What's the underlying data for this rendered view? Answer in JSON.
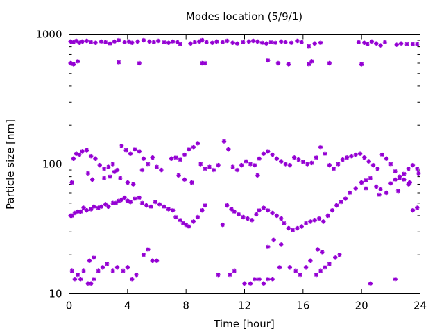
{
  "chart_data": {
    "type": "scatter",
    "title": "Modes location (5/9/1)",
    "xlabel": "Time [hour]",
    "ylabel": "Particle size [nm]",
    "xlim": [
      0,
      24
    ],
    "ylim": [
      10,
      1000
    ],
    "yscale": "log",
    "grid": false,
    "x_ticks": [
      0,
      4,
      8,
      12,
      16,
      20,
      24
    ],
    "x_tick_labels": [
      "0",
      "4",
      "8",
      "12",
      "16",
      "20",
      "24"
    ],
    "y_ticks": [
      10,
      100,
      1000
    ],
    "y_tick_labels": [
      "10",
      "100",
      "1000"
    ],
    "marker_color": "#9400d3",
    "series": [
      {
        "points": [
          [
            0.1,
            880
          ],
          [
            0.3,
            870
          ],
          [
            0.5,
            890
          ],
          [
            0.7,
            860
          ],
          [
            0.9,
            880
          ],
          [
            1.2,
            890
          ],
          [
            1.5,
            870
          ],
          [
            1.8,
            860
          ],
          [
            2.2,
            880
          ],
          [
            2.5,
            870
          ],
          [
            2.8,
            850
          ],
          [
            3.1,
            880
          ],
          [
            3.4,
            900
          ],
          [
            3.8,
            870
          ],
          [
            4.1,
            880
          ],
          [
            4.3,
            860
          ],
          [
            4.7,
            880
          ],
          [
            5.1,
            900
          ],
          [
            5.5,
            880
          ],
          [
            5.8,
            870
          ],
          [
            6.1,
            890
          ],
          [
            6.5,
            870
          ],
          [
            6.8,
            860
          ],
          [
            7.1,
            880
          ],
          [
            7.4,
            870
          ],
          [
            7.6,
            840
          ],
          [
            8.3,
            850
          ],
          [
            8.6,
            870
          ],
          [
            8.9,
            880
          ],
          [
            9.1,
            900
          ],
          [
            9.4,
            870
          ],
          [
            9.8,
            860
          ],
          [
            10.1,
            880
          ],
          [
            10.5,
            870
          ],
          [
            10.8,
            890
          ],
          [
            11.2,
            860
          ],
          [
            11.5,
            850
          ],
          [
            11.9,
            870
          ],
          [
            12.3,
            880
          ],
          [
            12.6,
            890
          ],
          [
            12.9,
            880
          ],
          [
            13.2,
            860
          ],
          [
            13.5,
            850
          ],
          [
            13.8,
            870
          ],
          [
            14.1,
            860
          ],
          [
            14.5,
            880
          ],
          [
            14.8,
            870
          ],
          [
            15.2,
            860
          ],
          [
            15.6,
            890
          ],
          [
            15.9,
            870
          ],
          [
            16.4,
            810
          ],
          [
            16.8,
            850
          ],
          [
            17.2,
            860
          ],
          [
            19.8,
            870
          ],
          [
            20.2,
            860
          ],
          [
            20.4,
            840
          ],
          [
            20.7,
            880
          ],
          [
            21.0,
            850
          ],
          [
            21.3,
            820
          ],
          [
            21.6,
            870
          ],
          [
            22.4,
            830
          ],
          [
            22.7,
            850
          ],
          [
            23.1,
            840
          ],
          [
            23.5,
            840
          ],
          [
            23.8,
            840
          ],
          [
            0.1,
            600
          ],
          [
            0.3,
            590
          ],
          [
            0.6,
            620
          ],
          [
            3.4,
            610
          ],
          [
            4.8,
            600
          ],
          [
            9.1,
            600
          ],
          [
            9.3,
            600
          ],
          [
            13.6,
            630
          ],
          [
            14.3,
            600
          ],
          [
            15.0,
            590
          ],
          [
            16.4,
            590
          ],
          [
            16.6,
            620
          ],
          [
            17.8,
            600
          ],
          [
            20.0,
            590
          ],
          [
            0.1,
            40
          ],
          [
            0.2,
            40
          ],
          [
            0.4,
            42
          ],
          [
            0.6,
            43
          ],
          [
            0.8,
            43
          ],
          [
            1.0,
            46
          ],
          [
            1.2,
            44
          ],
          [
            1.5,
            45
          ],
          [
            1.7,
            47
          ],
          [
            2.0,
            46
          ],
          [
            2.2,
            47
          ],
          [
            2.5,
            49
          ],
          [
            2.7,
            47
          ],
          [
            3.0,
            50
          ],
          [
            3.2,
            50
          ],
          [
            3.4,
            52
          ],
          [
            3.6,
            53
          ],
          [
            3.8,
            55
          ],
          [
            4.0,
            52
          ],
          [
            4.2,
            51
          ],
          [
            4.5,
            54
          ],
          [
            4.8,
            55
          ],
          [
            5.0,
            50
          ],
          [
            5.3,
            48
          ],
          [
            5.6,
            47
          ],
          [
            5.9,
            51
          ],
          [
            6.2,
            49
          ],
          [
            6.5,
            47
          ],
          [
            6.8,
            45
          ],
          [
            7.1,
            44
          ],
          [
            7.3,
            39
          ],
          [
            7.6,
            37
          ],
          [
            7.8,
            35
          ],
          [
            8.0,
            34
          ],
          [
            8.2,
            33
          ],
          [
            8.5,
            36
          ],
          [
            8.8,
            39
          ],
          [
            9.1,
            44
          ],
          [
            9.3,
            48
          ],
          [
            10.5,
            34
          ],
          [
            10.8,
            48
          ],
          [
            11.1,
            45
          ],
          [
            11.3,
            43
          ],
          [
            11.6,
            41
          ],
          [
            11.9,
            39
          ],
          [
            12.2,
            38
          ],
          [
            12.5,
            37
          ],
          [
            12.8,
            41
          ],
          [
            13.0,
            44
          ],
          [
            13.3,
            46
          ],
          [
            13.6,
            44
          ],
          [
            13.9,
            42
          ],
          [
            14.2,
            40
          ],
          [
            14.5,
            38
          ],
          [
            14.7,
            35
          ],
          [
            15.0,
            32
          ],
          [
            15.3,
            31
          ],
          [
            15.6,
            32
          ],
          [
            15.9,
            33
          ],
          [
            16.2,
            35
          ],
          [
            16.5,
            36
          ],
          [
            16.8,
            37
          ],
          [
            17.1,
            38
          ],
          [
            17.4,
            36
          ],
          [
            17.7,
            40
          ],
          [
            18.0,
            44
          ],
          [
            18.3,
            48
          ],
          [
            18.6,
            51
          ],
          [
            18.9,
            54
          ],
          [
            19.2,
            60
          ],
          [
            19.6,
            65
          ],
          [
            20.0,
            72
          ],
          [
            20.3,
            75
          ],
          [
            20.6,
            78
          ],
          [
            21.0,
            67
          ],
          [
            21.3,
            64
          ],
          [
            21.7,
            60
          ],
          [
            22.0,
            71
          ],
          [
            22.3,
            76
          ],
          [
            22.6,
            78
          ],
          [
            22.9,
            76
          ],
          [
            23.2,
            70
          ],
          [
            23.5,
            44
          ],
          [
            23.8,
            46
          ],
          [
            0.2,
            72
          ],
          [
            0.3,
            110
          ],
          [
            0.5,
            120
          ],
          [
            0.7,
            118
          ],
          [
            0.9,
            125
          ],
          [
            1.2,
            128
          ],
          [
            1.5,
            115
          ],
          [
            1.8,
            110
          ],
          [
            2.1,
            98
          ],
          [
            2.4,
            92
          ],
          [
            2.7,
            95
          ],
          [
            3.0,
            100
          ],
          [
            3.3,
            90
          ],
          [
            3.6,
            138
          ],
          [
            3.9,
            128
          ],
          [
            4.2,
            120
          ],
          [
            4.5,
            130
          ],
          [
            4.8,
            125
          ],
          [
            5.1,
            110
          ],
          [
            5.4,
            100
          ],
          [
            5.7,
            112
          ],
          [
            6.0,
            95
          ],
          [
            6.3,
            90
          ],
          [
            7.0,
            110
          ],
          [
            7.3,
            112
          ],
          [
            7.6,
            108
          ],
          [
            7.9,
            118
          ],
          [
            8.2,
            130
          ],
          [
            8.5,
            135
          ],
          [
            8.8,
            145
          ],
          [
            9.0,
            100
          ],
          [
            9.3,
            92
          ],
          [
            9.6,
            95
          ],
          [
            9.9,
            90
          ],
          [
            10.2,
            98
          ],
          [
            10.6,
            150
          ],
          [
            10.9,
            130
          ],
          [
            11.2,
            95
          ],
          [
            11.5,
            90
          ],
          [
            11.8,
            98
          ],
          [
            12.1,
            105
          ],
          [
            12.4,
            100
          ],
          [
            12.7,
            98
          ],
          [
            13.0,
            110
          ],
          [
            13.3,
            120
          ],
          [
            13.6,
            125
          ],
          [
            13.9,
            118
          ],
          [
            14.2,
            110
          ],
          [
            14.5,
            105
          ],
          [
            14.8,
            100
          ],
          [
            15.1,
            98
          ],
          [
            15.4,
            112
          ],
          [
            15.7,
            108
          ],
          [
            16.0,
            104
          ],
          [
            16.3,
            100
          ],
          [
            16.6,
            102
          ],
          [
            16.9,
            112
          ],
          [
            17.2,
            135
          ],
          [
            17.5,
            120
          ],
          [
            17.8,
            98
          ],
          [
            18.1,
            92
          ],
          [
            18.4,
            100
          ],
          [
            18.7,
            108
          ],
          [
            19.0,
            112
          ],
          [
            19.3,
            115
          ],
          [
            19.6,
            118
          ],
          [
            19.9,
            120
          ],
          [
            20.2,
            112
          ],
          [
            20.5,
            105
          ],
          [
            20.8,
            98
          ],
          [
            21.1,
            92
          ],
          [
            21.4,
            118
          ],
          [
            21.7,
            110
          ],
          [
            22.0,
            100
          ],
          [
            22.3,
            88
          ],
          [
            22.6,
            80
          ],
          [
            22.9,
            84
          ],
          [
            23.2,
            92
          ],
          [
            23.5,
            98
          ],
          [
            23.8,
            92
          ],
          [
            23.9,
            85
          ],
          [
            1.3,
            85
          ],
          [
            1.6,
            76
          ],
          [
            2.4,
            78
          ],
          [
            2.8,
            80
          ],
          [
            3.1,
            87
          ],
          [
            3.5,
            78
          ],
          [
            4.0,
            72
          ],
          [
            4.4,
            70
          ],
          [
            5.0,
            90
          ],
          [
            7.5,
            82
          ],
          [
            7.9,
            76
          ],
          [
            8.4,
            72
          ],
          [
            12.9,
            82
          ],
          [
            20.3,
            65
          ],
          [
            21.2,
            58
          ],
          [
            22.5,
            62
          ],
          [
            23.3,
            72
          ],
          [
            0.2,
            15
          ],
          [
            0.4,
            13
          ],
          [
            0.6,
            14
          ],
          [
            0.8,
            13
          ],
          [
            1.0,
            15
          ],
          [
            1.3,
            12
          ],
          [
            1.5,
            12
          ],
          [
            1.7,
            13
          ],
          [
            2.0,
            15
          ],
          [
            2.3,
            16
          ],
          [
            2.6,
            17
          ],
          [
            3.0,
            15
          ],
          [
            3.3,
            16
          ],
          [
            3.7,
            15
          ],
          [
            4.0,
            16
          ],
          [
            4.3,
            13
          ],
          [
            4.6,
            14
          ],
          [
            5.1,
            20
          ],
          [
            5.4,
            22
          ],
          [
            5.7,
            18
          ],
          [
            6.0,
            18
          ],
          [
            1.4,
            18
          ],
          [
            1.7,
            19
          ],
          [
            10.2,
            14
          ],
          [
            11.0,
            14
          ],
          [
            11.3,
            15
          ],
          [
            12.0,
            12
          ],
          [
            12.4,
            12
          ],
          [
            12.7,
            13
          ],
          [
            13.0,
            13
          ],
          [
            13.3,
            12
          ],
          [
            13.6,
            13
          ],
          [
            13.9,
            13
          ],
          [
            14.4,
            16
          ],
          [
            15.1,
            16
          ],
          [
            15.5,
            15
          ],
          [
            15.8,
            14
          ],
          [
            16.2,
            16
          ],
          [
            16.5,
            18
          ],
          [
            16.9,
            14
          ],
          [
            17.2,
            15
          ],
          [
            17.5,
            16
          ],
          [
            17.8,
            17
          ],
          [
            18.2,
            19
          ],
          [
            18.5,
            20
          ],
          [
            20.6,
            12
          ],
          [
            22.3,
            13
          ],
          [
            13.6,
            23
          ],
          [
            14.0,
            26
          ],
          [
            14.5,
            24
          ],
          [
            17.0,
            22
          ],
          [
            17.3,
            21
          ]
        ]
      }
    ]
  }
}
